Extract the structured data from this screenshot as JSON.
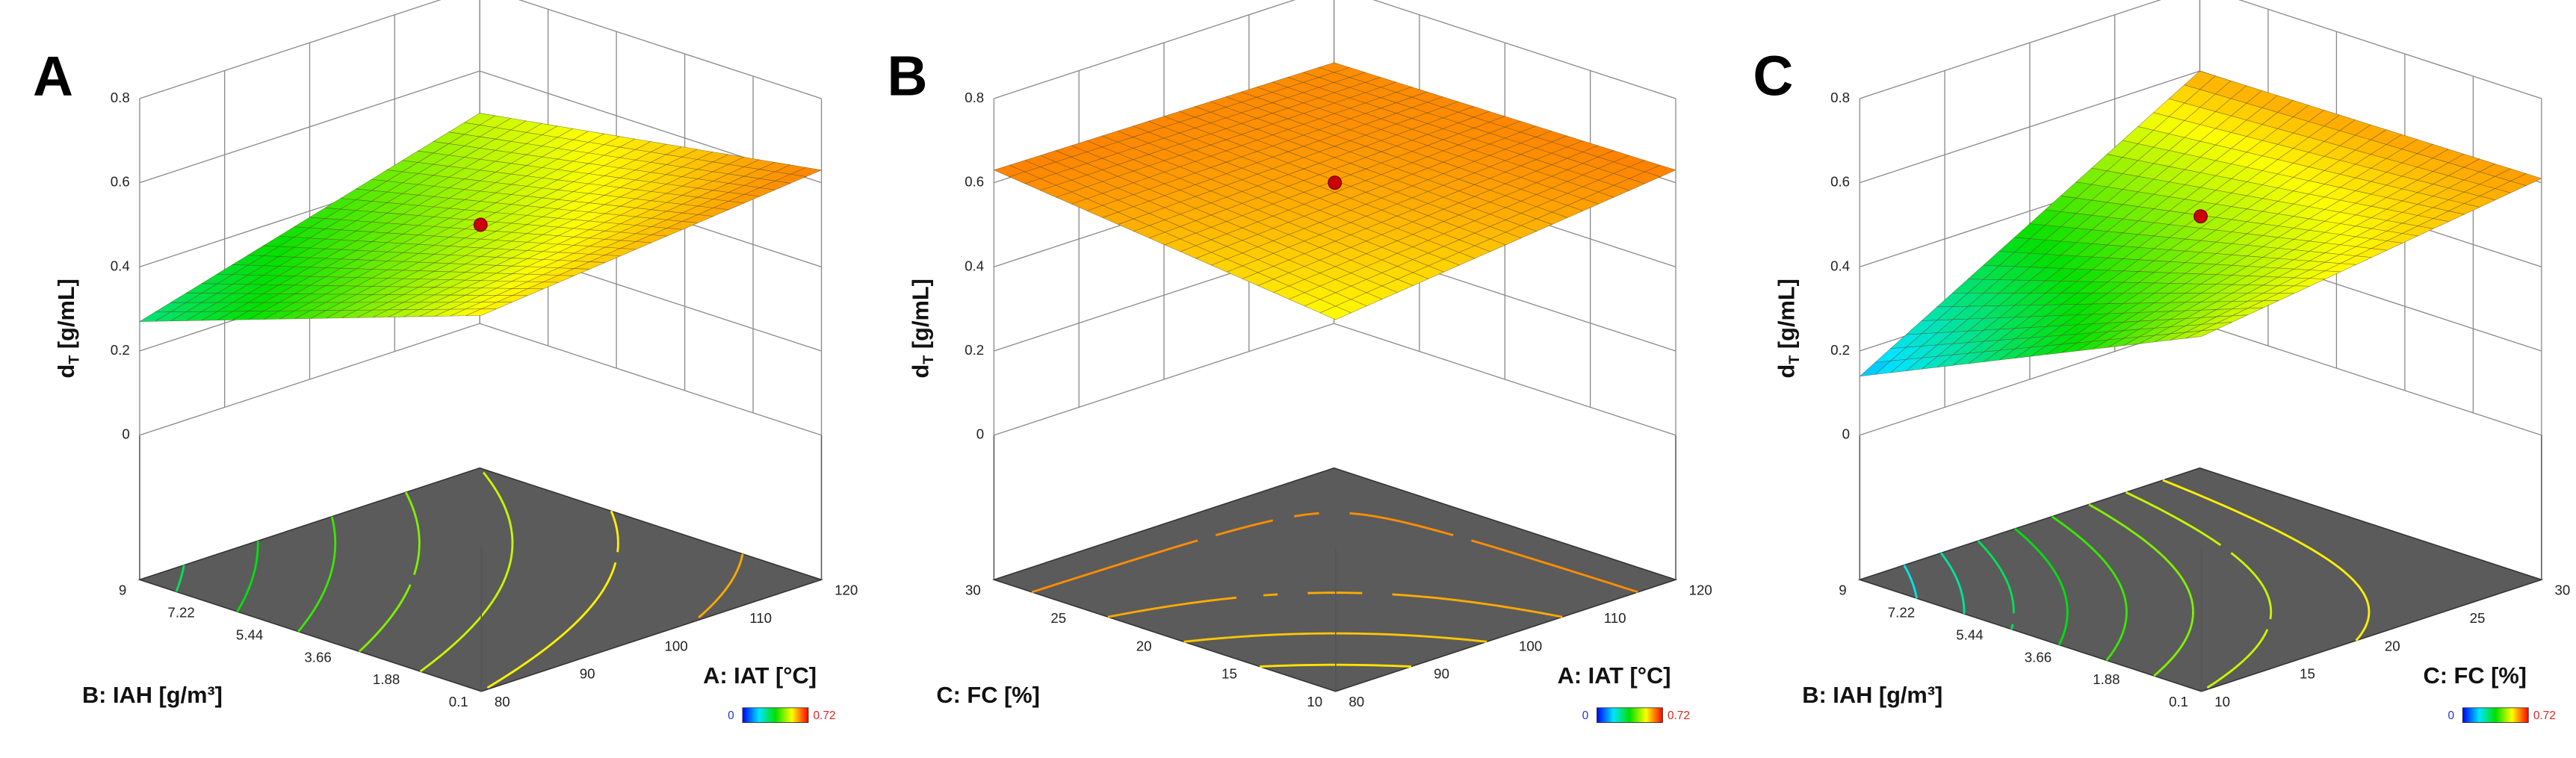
{
  "chart_data": [
    {
      "type": "surface3d",
      "panel_label": "A",
      "zlabel": [
        "d",
        "T",
        " [g/mL]"
      ],
      "xlabel": "A: IAT [°C]",
      "ylabel": "B: IAH [g/m³]",
      "xlim": [
        80,
        120
      ],
      "xticks": [
        80,
        90,
        100,
        110,
        120
      ],
      "ylim": [
        0.1,
        9
      ],
      "yticks": [
        0.1,
        1.88,
        3.66,
        5.44,
        7.22,
        9
      ],
      "zlim": [
        0,
        0.8
      ],
      "zticks": [
        0,
        0.2,
        0.4,
        0.6,
        0.8
      ],
      "surface_z": [
        [
          0.55,
          0.63
        ],
        [
          0.27,
          0.5
        ]
      ],
      "contour_levels": [
        0.3,
        0.35,
        0.4,
        0.45,
        0.5,
        0.55,
        0.6
      ],
      "point": {
        "x": 100,
        "y": 4.55,
        "z": 0.5,
        "color": "#cc0000"
      },
      "colorbar": {
        "min": 0,
        "max": 0.72,
        "colors": [
          "#0000ff",
          "#00e5ff",
          "#00e000",
          "#ffff00",
          "#ff0000"
        ]
      }
    },
    {
      "type": "surface3d",
      "panel_label": "B",
      "zlabel": [
        "d",
        "T",
        " [g/mL]"
      ],
      "xlabel": "A: IAT [°C]",
      "ylabel": "C: FC [%]",
      "xlim": [
        80,
        120
      ],
      "xticks": [
        80,
        90,
        100,
        110,
        120
      ],
      "ylim": [
        10,
        30
      ],
      "yticks": [
        10,
        15,
        20,
        25,
        30
      ],
      "zlim": [
        0,
        0.8
      ],
      "zticks": [
        0,
        0.2,
        0.4,
        0.6,
        0.8
      ],
      "surface_z": [
        [
          0.54,
          0.63
        ],
        [
          0.63,
          0.62
        ]
      ],
      "contour_levels": [
        0.56,
        0.58,
        0.6,
        0.62
      ],
      "point": {
        "x": 100,
        "y": 20,
        "z": 0.6,
        "color": "#cc0000"
      },
      "colorbar": {
        "min": 0,
        "max": 0.72,
        "colors": [
          "#0000ff",
          "#00e5ff",
          "#00e000",
          "#ffff00",
          "#ff0000"
        ]
      }
    },
    {
      "type": "surface3d",
      "panel_label": "C",
      "zlabel": [
        "d",
        "T",
        " [g/mL]"
      ],
      "xlabel": "C: FC [%]",
      "ylabel": "B: IAH [g/m³]",
      "xlim": [
        10,
        30
      ],
      "xticks": [
        10,
        15,
        20,
        25,
        30
      ],
      "ylim": [
        0.1,
        9
      ],
      "yticks": [
        0.1,
        1.88,
        3.66,
        5.44,
        7.22,
        9
      ],
      "zlim": [
        0,
        0.8
      ],
      "zticks": [
        0,
        0.2,
        0.4,
        0.6,
        0.8
      ],
      "surface_z": [
        [
          0.5,
          0.61
        ],
        [
          0.14,
          0.6
        ]
      ],
      "contour_levels": [
        0.2,
        0.25,
        0.3,
        0.35,
        0.4,
        0.45,
        0.5,
        0.55
      ],
      "point": {
        "x": 20,
        "y": 4.55,
        "z": 0.52,
        "color": "#cc0000"
      },
      "colorbar": {
        "min": 0,
        "max": 0.72,
        "colors": [
          "#0000ff",
          "#00e5ff",
          "#00e000",
          "#ffff00",
          "#ff0000"
        ]
      }
    }
  ]
}
